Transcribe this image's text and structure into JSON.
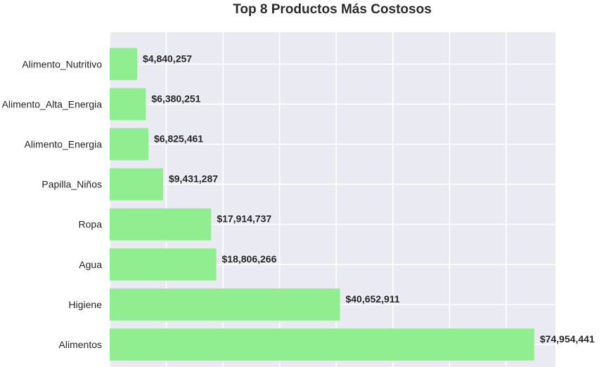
{
  "chart_data": {
    "type": "bar",
    "orientation": "horizontal",
    "title": "Top 8 Productos Más Costosos",
    "xlabel": "",
    "ylabel": "",
    "categories": [
      "Alimentos",
      "Higiene",
      "Agua",
      "Ropa",
      "Papilla_Niños",
      "Alimento_Energia",
      "Alimento_Alta_Energia",
      "Alimento_Nutritivo"
    ],
    "values": [
      74954441,
      40652911,
      18806266,
      17914737,
      9431287,
      6825461,
      6380251,
      4840257
    ],
    "data_labels": [
      "$74,954,441",
      "$40,652,911",
      "$18,806,266",
      "$17,914,737",
      "$9,431,287",
      "$6,825,461",
      "$6,380,251",
      "$4,840,257"
    ],
    "xlim": [
      0,
      78700000
    ],
    "x_gridlines": [
      0,
      10000000,
      20000000,
      30000000,
      40000000,
      50000000,
      60000000,
      70000000
    ],
    "x_tick_labels_visible": false,
    "grid": true,
    "legend": "none",
    "colors": {
      "bar": "#90ee90",
      "plot_background": "#eaeaf2",
      "grid": "#ffffff",
      "text": "#262626"
    }
  }
}
